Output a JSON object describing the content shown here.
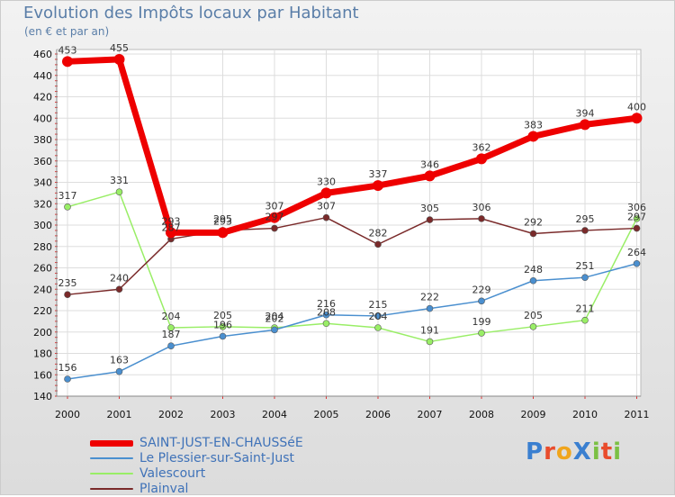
{
  "title": "Evolution des Impôts locaux par Habitant",
  "subtitle": "(en € et par an)",
  "logo": {
    "text": "ProXiti",
    "letters": [
      {
        "ch": "P",
        "color": "#3a7fd0"
      },
      {
        "ch": "r",
        "color": "#e94c2c"
      },
      {
        "ch": "o",
        "color": "#f0a51c"
      },
      {
        "ch": "X",
        "color": "#3a7fd0"
      },
      {
        "ch": "i",
        "color": "#7bc043"
      },
      {
        "ch": "t",
        "color": "#e94c2c"
      },
      {
        "ch": "i",
        "color": "#7bc043"
      }
    ]
  },
  "chart_data": {
    "type": "line",
    "x": [
      "2000",
      "2001",
      "2002",
      "2003",
      "2004",
      "2005",
      "2006",
      "2007",
      "2008",
      "2009",
      "2010",
      "2011"
    ],
    "ylim": [
      140,
      460
    ],
    "yticks": [
      140,
      160,
      180,
      200,
      220,
      240,
      260,
      280,
      300,
      320,
      340,
      360,
      380,
      400,
      420,
      440,
      460
    ],
    "grid": true,
    "legend_position": "bottom-left",
    "series": [
      {
        "name": "SAINT-JUST-EN-CHAUSSéE",
        "color": "#ee0000",
        "values": [
          453,
          455,
          293,
          293,
          307,
          330,
          337,
          346,
          362,
          383,
          394,
          400
        ]
      },
      {
        "name": "Le Plessier-sur-Saint-Just",
        "color": "#4a8fcf",
        "values": [
          156,
          163,
          187,
          196,
          202,
          216,
          215,
          222,
          229,
          248,
          251,
          264
        ]
      },
      {
        "name": "Valescourt",
        "color": "#99ee66",
        "values": [
          317,
          331,
          204,
          205,
          204,
          208,
          204,
          191,
          199,
          205,
          211,
          306
        ]
      },
      {
        "name": "Plainval",
        "color": "#7a2a2a",
        "values": [
          235,
          240,
          287,
          295,
          297,
          307,
          282,
          305,
          306,
          292,
          295,
          297
        ]
      }
    ]
  }
}
